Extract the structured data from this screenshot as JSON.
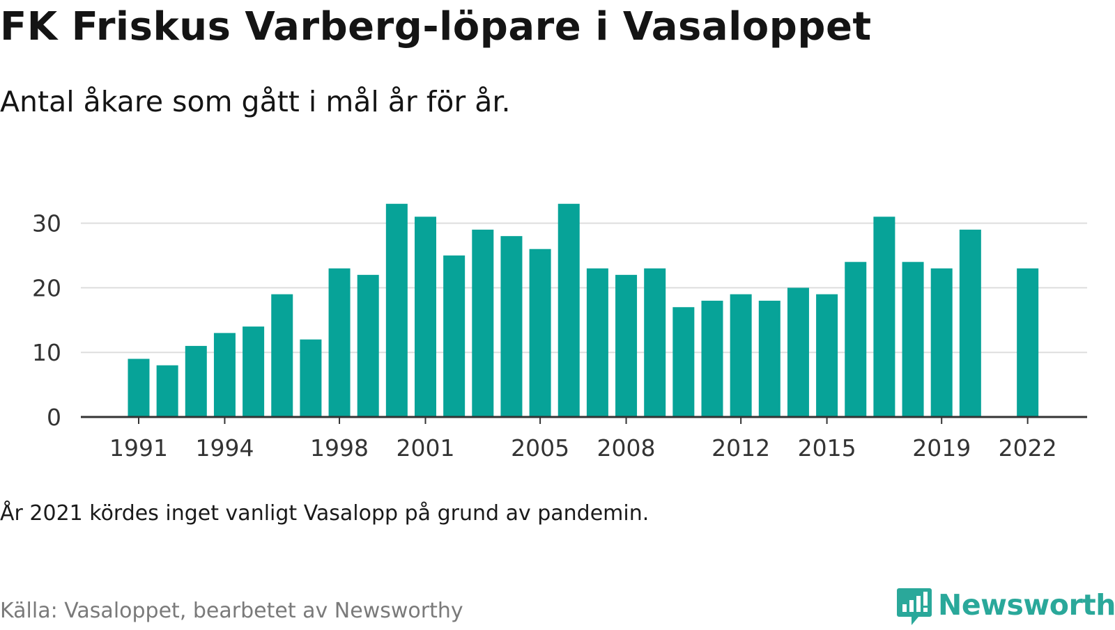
{
  "title": "FK Friskus Varberg-löpare i Vasaloppet",
  "subtitle": "Antal åkare som gått i mål år för år.",
  "note": "År 2021 kördes inget vanligt Vasalopp på grund av pandemin.",
  "source": "Källa: Vasaloppet, bearbetet av Newsworthy",
  "brand": {
    "name": "Newsworthy",
    "icon": "newsworthy-logo-icon"
  },
  "colors": {
    "bar": "#07a398",
    "grid": "#dddddd",
    "axis": "#333333",
    "brand": "#2aa89a",
    "source": "#7a7a7a"
  },
  "chart_data": {
    "type": "bar",
    "title": "FK Friskus Varberg-löpare i Vasaloppet",
    "subtitle": "Antal åkare som gått i mål år för år.",
    "xlabel": "",
    "ylabel": "",
    "categories": [
      1991,
      1992,
      1993,
      1994,
      1995,
      1996,
      1997,
      1998,
      1999,
      2000,
      2001,
      2002,
      2003,
      2004,
      2005,
      2006,
      2007,
      2008,
      2009,
      2010,
      2011,
      2012,
      2013,
      2014,
      2015,
      2016,
      2017,
      2018,
      2019,
      2020,
      2021,
      2022
    ],
    "values": [
      9,
      8,
      11,
      13,
      14,
      19,
      12,
      23,
      22,
      33,
      31,
      25,
      29,
      28,
      26,
      33,
      23,
      22,
      23,
      17,
      18,
      19,
      18,
      20,
      19,
      24,
      31,
      24,
      23,
      29,
      null,
      23
    ],
    "ylim": [
      0,
      33
    ],
    "yticks": [
      0,
      10,
      20,
      30
    ],
    "xtick_labels": [
      1991,
      1994,
      1998,
      2001,
      2005,
      2008,
      2012,
      2015,
      2019,
      2022
    ],
    "grid": "horizontal",
    "legend": "none"
  }
}
